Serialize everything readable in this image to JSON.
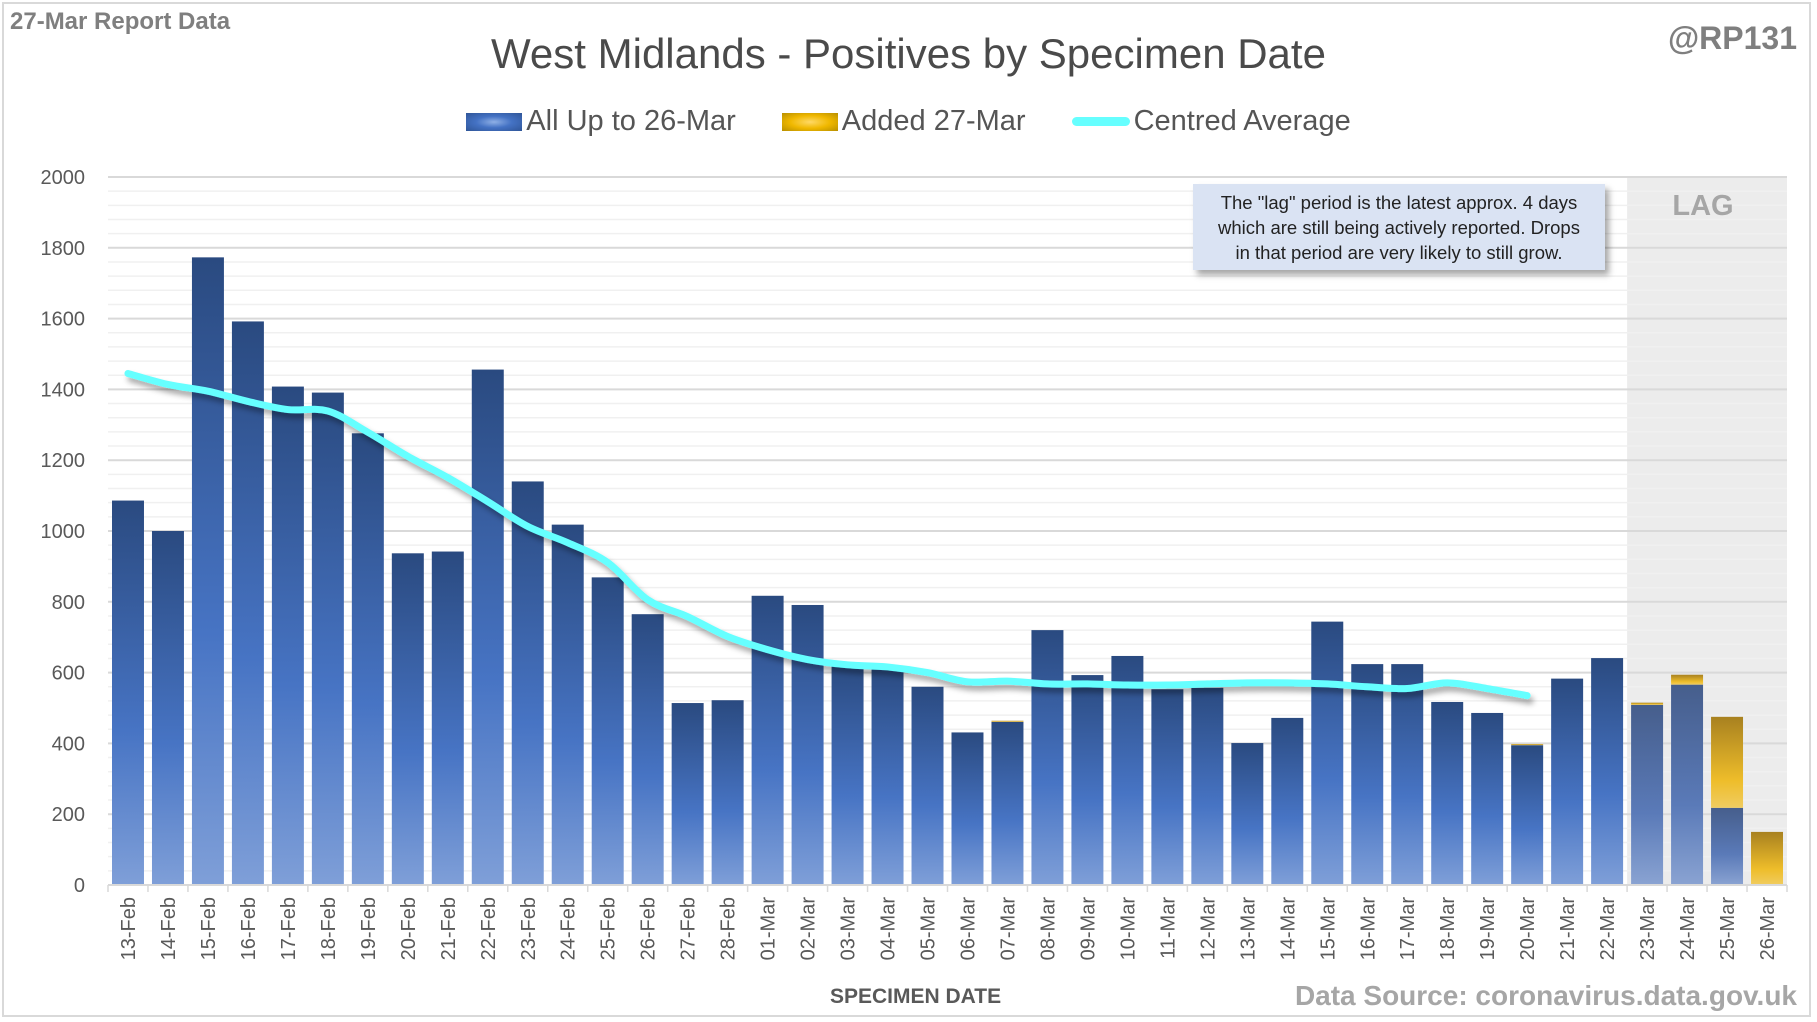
{
  "header": {
    "report_label": "27-Mar Report Data",
    "handle": "@RP131"
  },
  "annotation": {
    "note_lines": [
      "The \"lag\" period is the latest approx. 4 days",
      "which are still being actively reported.  Drops",
      "in that period are very likely to still grow."
    ],
    "lag_label": "LAG"
  },
  "footer": {
    "source": "Data Source: coronavirus.data.gov.uk"
  },
  "colors": {
    "series_blue": "#4472c4",
    "series_blue_dark": "#2f5597",
    "series_gold": "#f0b800",
    "average_line": "#66ffff",
    "lag_shade": "#ececec"
  },
  "chart_data": {
    "type": "bar",
    "stacked": true,
    "title": "West Midlands - Positives by Specimen Date",
    "xlabel": "SPECIMEN DATE",
    "ylabel": "",
    "ylim": [
      0,
      2000
    ],
    "yticks": [
      0,
      200,
      400,
      600,
      800,
      1000,
      1200,
      1400,
      1600,
      1800,
      2000
    ],
    "grid": true,
    "legend_position": "top-center",
    "lag_region": {
      "from": "23-Mar",
      "to": "26-Mar",
      "label": "LAG"
    },
    "categories": [
      "13-Feb",
      "14-Feb",
      "15-Feb",
      "16-Feb",
      "17-Feb",
      "18-Feb",
      "19-Feb",
      "20-Feb",
      "21-Feb",
      "22-Feb",
      "23-Feb",
      "24-Feb",
      "25-Feb",
      "26-Feb",
      "27-Feb",
      "28-Feb",
      "01-Mar",
      "02-Mar",
      "03-Mar",
      "04-Mar",
      "05-Mar",
      "06-Mar",
      "07-Mar",
      "08-Mar",
      "09-Mar",
      "10-Mar",
      "11-Mar",
      "12-Mar",
      "13-Mar",
      "14-Mar",
      "15-Mar",
      "16-Mar",
      "17-Mar",
      "18-Mar",
      "19-Mar",
      "20-Mar",
      "21-Mar",
      "22-Mar",
      "23-Mar",
      "24-Mar",
      "25-Mar",
      "26-Mar"
    ],
    "series": [
      {
        "name": "All Up to 26-Mar",
        "kind": "bar",
        "values": [
          1086,
          1000,
          1773,
          1592,
          1408,
          1391,
          1276,
          937,
          942,
          1456,
          1140,
          1018,
          869,
          765,
          514,
          522,
          817,
          791,
          628,
          618,
          560,
          431,
          461,
          720,
          593,
          647,
          553,
          557,
          401,
          472,
          744,
          624,
          624,
          517,
          486,
          395,
          583,
          641,
          509,
          566,
          218,
          0
        ]
      },
      {
        "name": "Added 27-Mar",
        "kind": "bar",
        "values": [
          0,
          0,
          0,
          0,
          0,
          0,
          0,
          0,
          0,
          0,
          0,
          0,
          0,
          0,
          0,
          0,
          0,
          0,
          0,
          0,
          0,
          0,
          3,
          0,
          0,
          0,
          0,
          0,
          0,
          0,
          0,
          0,
          0,
          0,
          0,
          3,
          0,
          0,
          6,
          28,
          257,
          150
        ]
      },
      {
        "name": "Centred Average",
        "kind": "line",
        "values": [
          1445,
          1414,
          1395,
          1366,
          1343,
          1339,
          1279,
          1211,
          1151,
          1083,
          1013,
          967,
          911,
          806,
          758,
          702,
          665,
          637,
          622,
          616,
          600,
          574,
          576,
          568,
          568,
          565,
          565,
          568,
          571,
          571,
          568,
          560,
          555,
          571,
          555,
          535,
          null,
          null,
          null,
          null,
          null,
          null
        ]
      }
    ]
  }
}
